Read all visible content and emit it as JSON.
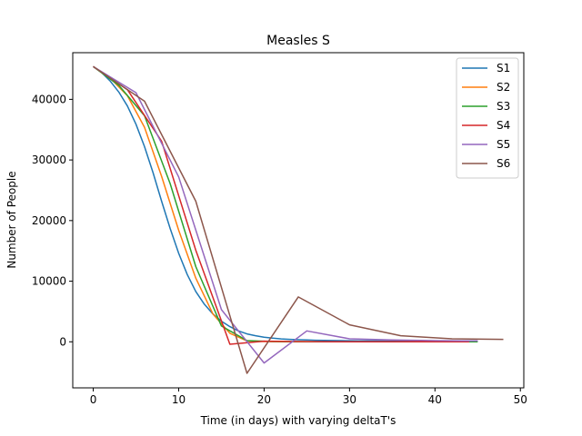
{
  "chart_data": {
    "type": "line",
    "title": "Measles S",
    "xlabel": "Time (in days) with varying deltaT's",
    "ylabel": "Number of People",
    "xlim": [
      -2.4,
      50.4
    ],
    "ylim": [
      -7600,
      47700
    ],
    "xticks": [
      0,
      10,
      20,
      30,
      40,
      50
    ],
    "yticks": [
      0,
      10000,
      20000,
      30000,
      40000
    ],
    "grid": false,
    "legend_position": "top-right",
    "series": [
      {
        "name": "S1",
        "color": "#1f77b4",
        "x": [
          0,
          1,
          2,
          3,
          4,
          5,
          6,
          7,
          8,
          9,
          10,
          11,
          12,
          13,
          14,
          15,
          16,
          17,
          18,
          19,
          20,
          21,
          22,
          23,
          24,
          25,
          26,
          27,
          28,
          29,
          30,
          31,
          32,
          33,
          34,
          35,
          36,
          37,
          38,
          39,
          40,
          41,
          42,
          43,
          44,
          45
        ],
        "y": [
          45400,
          44400,
          43000,
          41200,
          38900,
          35900,
          32200,
          27900,
          23200,
          18700,
          14600,
          11100,
          8300,
          6200,
          4600,
          3400,
          2500,
          1800,
          1300,
          1000,
          750,
          600,
          480,
          400,
          340,
          300,
          260,
          230,
          210,
          190,
          175,
          160,
          150,
          140,
          130,
          122,
          115,
          108,
          102,
          97,
          92,
          88,
          84,
          80,
          77,
          74
        ]
      },
      {
        "name": "S2",
        "color": "#ff7f0e",
        "x": [
          0,
          2,
          4,
          6,
          8,
          10,
          12,
          14,
          16,
          18,
          20,
          22,
          24,
          26,
          28,
          30,
          32,
          34,
          36,
          38,
          40,
          42,
          44
        ],
        "y": [
          45400,
          43500,
          40600,
          35400,
          27300,
          18400,
          10500,
          4600,
          1400,
          150,
          50,
          30,
          20,
          15,
          12,
          10,
          8,
          7,
          6,
          5,
          5,
          4,
          4
        ]
      },
      {
        "name": "S3",
        "color": "#2ca02c",
        "x": [
          0,
          3,
          6,
          9,
          12,
          15,
          18,
          21,
          24,
          27,
          30,
          33,
          36,
          39,
          42,
          45
        ],
        "y": [
          45400,
          42300,
          37300,
          26100,
          12400,
          2600,
          200,
          50,
          30,
          20,
          15,
          12,
          10,
          8,
          7,
          6
        ]
      },
      {
        "name": "S4",
        "color": "#d62728",
        "x": [
          0,
          4,
          8,
          12,
          16,
          20,
          24,
          28,
          32,
          36,
          40,
          44
        ],
        "y": [
          45400,
          41600,
          33100,
          15100,
          -400,
          100,
          40,
          20,
          15,
          10,
          8,
          6
        ]
      },
      {
        "name": "S5",
        "color": "#9467bd",
        "x": [
          0,
          5,
          10,
          15,
          20,
          25,
          30,
          35,
          40,
          45
        ],
        "y": [
          45400,
          41100,
          27200,
          5300,
          -3500,
          1800,
          500,
          300,
          200,
          150
        ]
      },
      {
        "name": "S6",
        "color": "#8c564b",
        "x": [
          0,
          6,
          12,
          18,
          24,
          30,
          36,
          42,
          48
        ],
        "y": [
          45400,
          39700,
          23200,
          -5200,
          7400,
          2800,
          1000,
          500,
          400
        ]
      }
    ]
  }
}
